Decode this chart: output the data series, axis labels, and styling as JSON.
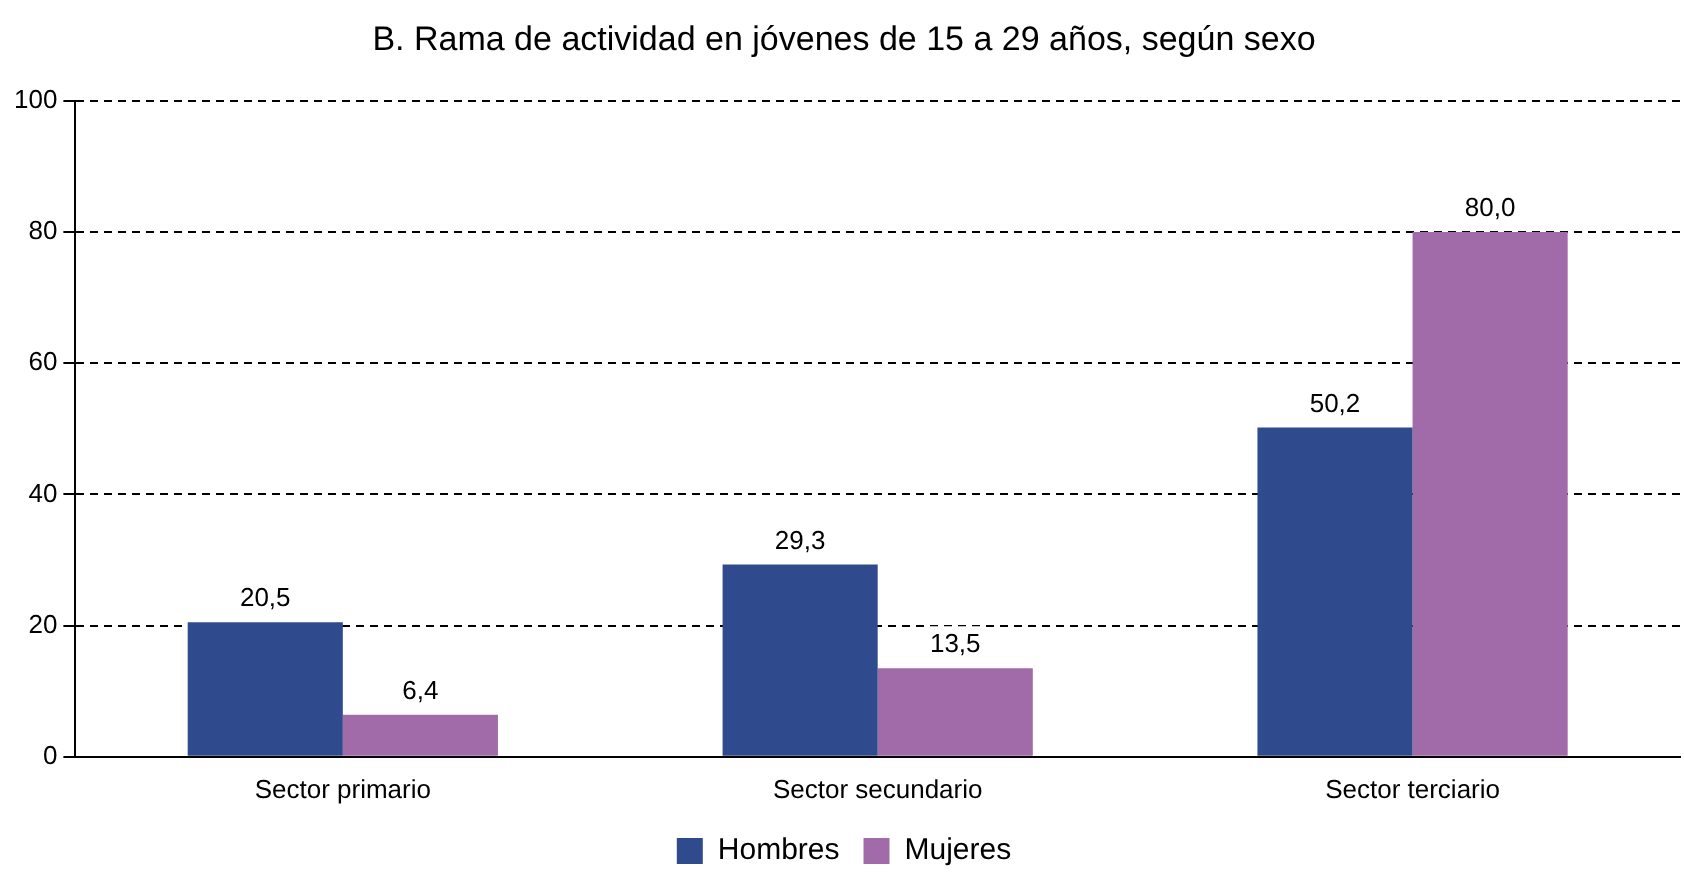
{
  "chart_data": {
    "type": "bar",
    "title": "B. Rama de actividad en jóvenes de 15 a 29 años, según sexo",
    "categories": [
      "Sector primario",
      "Sector secundario",
      "Sector terciario"
    ],
    "series": [
      {
        "name": "Hombres",
        "color": "#2f4a8d",
        "values": [
          20.5,
          29.3,
          50.2
        ],
        "value_labels": [
          "20,5",
          "29,3",
          "50,2"
        ]
      },
      {
        "name": "Mujeres",
        "color": "#a06ba8",
        "values": [
          6.4,
          13.5,
          80.0
        ],
        "value_labels": [
          "6,4",
          "13,5",
          "80,0"
        ]
      }
    ],
    "ylim": [
      0,
      100
    ],
    "yticks": [
      0,
      20,
      40,
      60,
      80,
      100
    ],
    "grid": "y",
    "legend": "bottom"
  }
}
